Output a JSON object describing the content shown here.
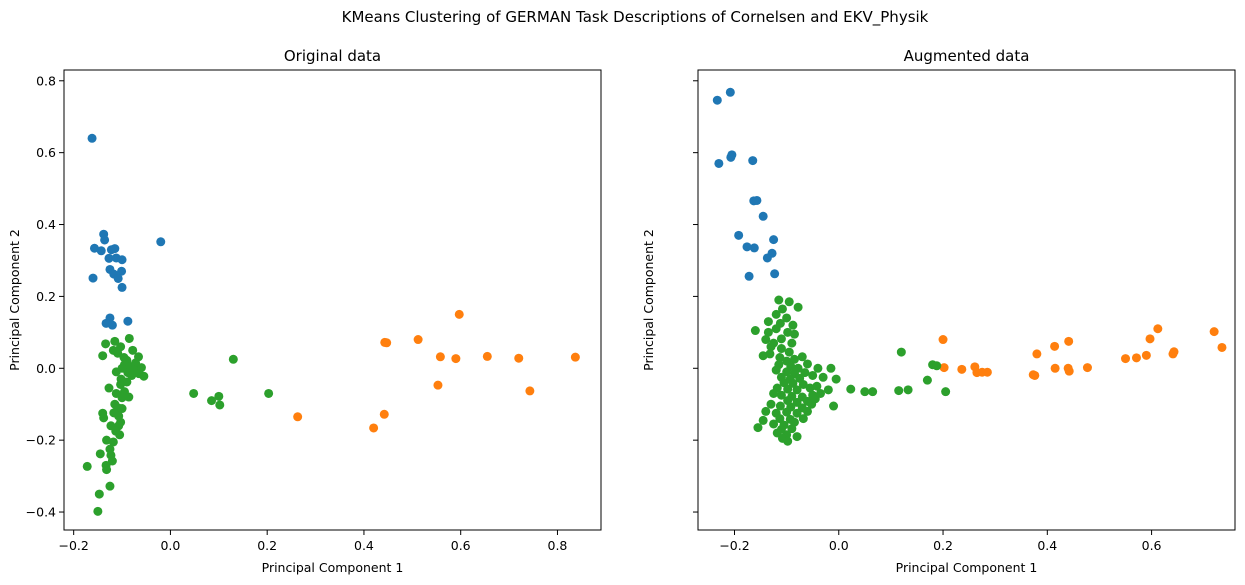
{
  "figure_title": "KMeans Clustering of GERMAN Task Descriptions of Cornelsen and EKV_Physik",
  "colors": {
    "cluster0": "#1f77b4",
    "cluster1": "#ff7f0e",
    "cluster2": "#2ca02c"
  },
  "chart_data": [
    {
      "type": "scatter",
      "title": "Original data",
      "xlabel": "Principal Component 1",
      "ylabel": "Principal Component 2",
      "xlim": [
        -0.22,
        0.89
      ],
      "ylim": [
        -0.45,
        0.83
      ],
      "xticks": [
        -0.2,
        0.0,
        0.2,
        0.4,
        0.6,
        0.8
      ],
      "xtick_labels": [
        "−0.2",
        "0.0",
        "0.2",
        "0.4",
        "0.6",
        "0.8"
      ],
      "yticks": [
        -0.4,
        -0.2,
        0.0,
        0.2,
        0.4,
        0.6,
        0.8
      ],
      "ytick_labels": [
        "−0.4",
        "−0.2",
        "0.0",
        "0.2",
        "0.4",
        "0.6",
        "0.8"
      ],
      "series": [
        {
          "cluster": 0,
          "color": "#1f77b4",
          "points": [
            [
              -0.162,
              0.64
            ],
            [
              -0.02,
              0.352
            ],
            [
              -0.138,
              0.373
            ],
            [
              -0.136,
              0.357
            ],
            [
              -0.157,
              0.334
            ],
            [
              -0.143,
              0.327
            ],
            [
              -0.122,
              0.33
            ],
            [
              -0.115,
              0.333
            ],
            [
              -0.127,
              0.306
            ],
            [
              -0.112,
              0.307
            ],
            [
              -0.1,
              0.302
            ],
            [
              -0.125,
              0.275
            ],
            [
              -0.101,
              0.27
            ],
            [
              -0.117,
              0.262
            ],
            [
              -0.108,
              0.25
            ],
            [
              -0.16,
              0.251
            ],
            [
              -0.1,
              0.225
            ],
            [
              -0.125,
              0.14
            ],
            [
              -0.133,
              0.125
            ],
            [
              -0.12,
              0.12
            ],
            [
              -0.088,
              0.131
            ]
          ]
        },
        {
          "cluster": 1,
          "color": "#ff7f0e",
          "points": [
            [
              0.597,
              0.15
            ],
            [
              0.512,
              0.08
            ],
            [
              0.443,
              0.072
            ],
            [
              0.447,
              0.071
            ],
            [
              0.558,
              0.032
            ],
            [
              0.59,
              0.027
            ],
            [
              0.655,
              0.033
            ],
            [
              0.72,
              0.028
            ],
            [
              0.837,
              0.031
            ],
            [
              0.553,
              -0.047
            ],
            [
              0.743,
              -0.063
            ],
            [
              0.442,
              -0.128
            ],
            [
              0.263,
              -0.135
            ],
            [
              0.42,
              -0.166
            ]
          ]
        },
        {
          "cluster": 2,
          "color": "#2ca02c",
          "points": [
            [
              -0.085,
              0.083
            ],
            [
              -0.134,
              0.068
            ],
            [
              -0.115,
              0.075
            ],
            [
              -0.103,
              0.06
            ],
            [
              -0.118,
              0.05
            ],
            [
              -0.078,
              0.05
            ],
            [
              -0.066,
              0.032
            ],
            [
              -0.14,
              0.035
            ],
            [
              -0.109,
              0.042
            ],
            [
              -0.096,
              0.03
            ],
            [
              -0.09,
              0.022
            ],
            [
              -0.072,
              0.015
            ],
            [
              -0.095,
              0.01
            ],
            [
              -0.083,
              0.005
            ],
            [
              -0.06,
              0.002
            ],
            [
              -0.1,
              0.0
            ],
            [
              -0.075,
              -0.005
            ],
            [
              -0.112,
              -0.01
            ],
            [
              -0.088,
              -0.012
            ],
            [
              -0.065,
              -0.015
            ],
            [
              -0.08,
              -0.02
            ],
            [
              -0.055,
              -0.022
            ],
            [
              -0.102,
              -0.03
            ],
            [
              -0.09,
              -0.038
            ],
            [
              -0.127,
              -0.055
            ],
            [
              -0.103,
              -0.045
            ],
            [
              -0.095,
              -0.065
            ],
            [
              -0.112,
              -0.07
            ],
            [
              -0.086,
              -0.08
            ],
            [
              -0.1,
              -0.082
            ],
            [
              -0.115,
              -0.1
            ],
            [
              -0.108,
              -0.11
            ],
            [
              -0.1,
              -0.112
            ],
            [
              -0.117,
              -0.124
            ],
            [
              -0.14,
              -0.125
            ],
            [
              -0.107,
              -0.133
            ],
            [
              -0.138,
              -0.138
            ],
            [
              -0.103,
              -0.15
            ],
            [
              -0.123,
              -0.16
            ],
            [
              -0.107,
              -0.16
            ],
            [
              -0.113,
              -0.175
            ],
            [
              -0.105,
              -0.185
            ],
            [
              -0.132,
              -0.2
            ],
            [
              -0.118,
              -0.205
            ],
            [
              -0.125,
              -0.225
            ],
            [
              -0.145,
              -0.238
            ],
            [
              -0.123,
              -0.242
            ],
            [
              -0.12,
              -0.258
            ],
            [
              -0.133,
              -0.27
            ],
            [
              -0.132,
              -0.282
            ],
            [
              -0.172,
              -0.273
            ],
            [
              -0.125,
              -0.328
            ],
            [
              -0.147,
              -0.35
            ],
            [
              -0.15,
              -0.398
            ],
            [
              0.13,
              0.025
            ],
            [
              0.048,
              -0.07
            ],
            [
              0.085,
              -0.09
            ],
            [
              0.1,
              -0.078
            ],
            [
              0.102,
              -0.102
            ],
            [
              0.203,
              -0.07
            ]
          ]
        }
      ]
    },
    {
      "type": "scatter",
      "title": "Augmented data",
      "xlabel": "Principal Component 1",
      "ylabel": "Principal Component 2",
      "xlim": [
        -0.27,
        0.76
      ],
      "ylim": [
        -0.45,
        0.83
      ],
      "xticks": [
        -0.2,
        0.0,
        0.2,
        0.4,
        0.6
      ],
      "xtick_labels": [
        "−0.2",
        "0.0",
        "0.2",
        "0.4",
        "0.6"
      ],
      "yticks": [
        -0.4,
        -0.2,
        0.0,
        0.2,
        0.4,
        0.6,
        0.8
      ],
      "ytick_labels": [],
      "series": [
        {
          "cluster": 0,
          "color": "#1f77b4",
          "points": [
            [
              -0.208,
              0.768
            ],
            [
              -0.233,
              0.746
            ],
            [
              -0.205,
              0.594
            ],
            [
              -0.207,
              0.587
            ],
            [
              -0.23,
              0.57
            ],
            [
              -0.165,
              0.578
            ],
            [
              -0.163,
              0.466
            ],
            [
              -0.157,
              0.467
            ],
            [
              -0.145,
              0.423
            ],
            [
              -0.192,
              0.37
            ],
            [
              -0.125,
              0.358
            ],
            [
              -0.162,
              0.335
            ],
            [
              -0.176,
              0.338
            ],
            [
              -0.128,
              0.32
            ],
            [
              -0.137,
              0.307
            ],
            [
              -0.172,
              0.256
            ],
            [
              -0.123,
              0.263
            ]
          ]
        },
        {
          "cluster": 1,
          "color": "#ff7f0e",
          "points": [
            [
              0.612,
              0.11
            ],
            [
              0.72,
              0.102
            ],
            [
              0.735,
              0.058
            ],
            [
              0.2,
              0.08
            ],
            [
              0.597,
              0.082
            ],
            [
              0.441,
              0.075
            ],
            [
              0.414,
              0.061
            ],
            [
              0.38,
              0.04
            ],
            [
              0.643,
              0.046
            ],
            [
              0.641,
              0.04
            ],
            [
              0.59,
              0.036
            ],
            [
              0.571,
              0.029
            ],
            [
              0.55,
              0.027
            ],
            [
              0.202,
              0.002
            ],
            [
              0.236,
              -0.003
            ],
            [
              0.261,
              0.004
            ],
            [
              0.265,
              -0.012
            ],
            [
              0.275,
              -0.011
            ],
            [
              0.285,
              -0.011
            ],
            [
              0.415,
              0.0
            ],
            [
              0.44,
              0.0
            ],
            [
              0.442,
              -0.008
            ],
            [
              0.477,
              0.002
            ],
            [
              0.373,
              -0.018
            ],
            [
              0.376,
              -0.02
            ]
          ]
        },
        {
          "cluster": 2,
          "color": "#2ca02c",
          "points": [
            [
              -0.115,
              0.19
            ],
            [
              -0.095,
              0.185
            ],
            [
              -0.078,
              0.17
            ],
            [
              -0.108,
              0.165
            ],
            [
              -0.12,
              0.15
            ],
            [
              -0.1,
              0.14
            ],
            [
              -0.135,
              0.13
            ],
            [
              -0.112,
              0.125
            ],
            [
              -0.088,
              0.12
            ],
            [
              -0.16,
              0.105
            ],
            [
              -0.12,
              0.11
            ],
            [
              -0.135,
              0.1
            ],
            [
              -0.098,
              0.1
            ],
            [
              -0.085,
              0.095
            ],
            [
              -0.11,
              0.082
            ],
            [
              -0.125,
              0.07
            ],
            [
              -0.09,
              0.07
            ],
            [
              -0.11,
              0.055
            ],
            [
              -0.095,
              0.045
            ],
            [
              -0.132,
              0.04
            ],
            [
              -0.113,
              0.03
            ],
            [
              -0.085,
              0.025
            ],
            [
              -0.1,
              0.02
            ],
            [
              -0.07,
              0.032
            ],
            [
              -0.115,
              0.01
            ],
            [
              -0.092,
              0.005
            ],
            [
              -0.06,
              0.012
            ],
            [
              -0.078,
              0.0
            ],
            [
              -0.04,
              0.0
            ],
            [
              -0.12,
              -0.005
            ],
            [
              -0.1,
              -0.01
            ],
            [
              -0.085,
              -0.015
            ],
            [
              -0.065,
              -0.012
            ],
            [
              -0.11,
              -0.025
            ],
            [
              -0.093,
              -0.03
            ],
            [
              -0.075,
              -0.028
            ],
            [
              -0.05,
              -0.02
            ],
            [
              -0.03,
              -0.025
            ],
            [
              -0.105,
              -0.04
            ],
            [
              -0.088,
              -0.042
            ],
            [
              -0.068,
              -0.045
            ],
            [
              -0.118,
              -0.055
            ],
            [
              -0.098,
              -0.058
            ],
            [
              -0.08,
              -0.06
            ],
            [
              -0.055,
              -0.055
            ],
            [
              -0.042,
              -0.05
            ],
            [
              -0.125,
              -0.07
            ],
            [
              -0.11,
              -0.075
            ],
            [
              -0.09,
              -0.078
            ],
            [
              -0.07,
              -0.08
            ],
            [
              -0.05,
              -0.075
            ],
            [
              -0.098,
              -0.09
            ],
            [
              -0.08,
              -0.095
            ],
            [
              -0.06,
              -0.092
            ],
            [
              -0.13,
              -0.1
            ],
            [
              -0.112,
              -0.105
            ],
            [
              -0.092,
              -0.108
            ],
            [
              -0.07,
              -0.11
            ],
            [
              -0.14,
              -0.12
            ],
            [
              -0.12,
              -0.125
            ],
            [
              -0.1,
              -0.122
            ],
            [
              -0.08,
              -0.125
            ],
            [
              -0.113,
              -0.14
            ],
            [
              -0.093,
              -0.142
            ],
            [
              -0.145,
              -0.145
            ],
            [
              -0.125,
              -0.155
            ],
            [
              -0.105,
              -0.158
            ],
            [
              -0.085,
              -0.15
            ],
            [
              -0.155,
              -0.165
            ],
            [
              -0.11,
              -0.17
            ],
            [
              -0.09,
              -0.168
            ],
            [
              -0.118,
              -0.18
            ],
            [
              -0.1,
              -0.185
            ],
            [
              -0.108,
              -0.195
            ],
            [
              -0.098,
              -0.203
            ],
            [
              -0.08,
              -0.19
            ],
            [
              -0.068,
              -0.14
            ],
            [
              -0.06,
              -0.12
            ],
            [
              -0.052,
              -0.1
            ],
            [
              -0.045,
              -0.085
            ],
            [
              -0.035,
              -0.07
            ],
            [
              -0.02,
              -0.06
            ],
            [
              -0.01,
              -0.105
            ],
            [
              -0.005,
              -0.03
            ],
            [
              0.023,
              -0.058
            ],
            [
              0.05,
              -0.065
            ],
            [
              0.065,
              -0.065
            ],
            [
              0.115,
              -0.062
            ],
            [
              0.133,
              -0.06
            ],
            [
              0.12,
              0.045
            ],
            [
              0.17,
              -0.033
            ],
            [
              0.18,
              0.01
            ],
            [
              0.188,
              0.007
            ],
            [
              0.205,
              -0.065
            ],
            [
              -0.015,
              0.0
            ],
            [
              -0.145,
              0.035
            ],
            [
              -0.13,
              0.06
            ],
            [
              -0.14,
              0.08
            ]
          ]
        }
      ]
    }
  ]
}
